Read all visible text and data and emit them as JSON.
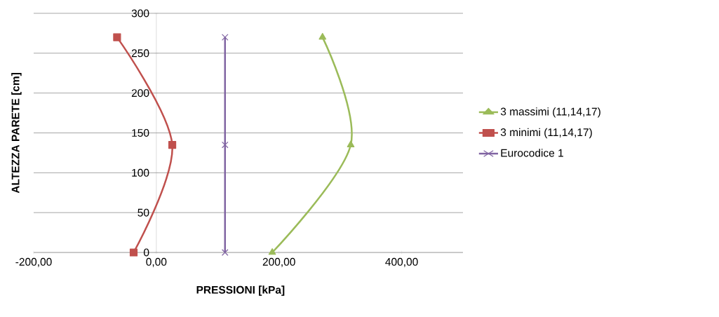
{
  "chart_data": {
    "type": "line",
    "xlabel": "PRESSIONI [kPa]",
    "ylabel": "ALTEZZA PARETE [cm]",
    "xlim": [
      -200,
      500
    ],
    "ylim": [
      0,
      300
    ],
    "xticks": [
      {
        "value": -200,
        "label": "-200,00"
      },
      {
        "value": 0,
        "label": "0,00"
      },
      {
        "value": 200,
        "label": "200,00"
      },
      {
        "value": 400,
        "label": "400,00"
      }
    ],
    "yticks": [
      0,
      50,
      100,
      150,
      200,
      250,
      300
    ],
    "grid": "y",
    "legend": "right",
    "series": [
      {
        "name": "3 massimi (11,14,17)",
        "color": "#9bbb59",
        "marker": "triangle",
        "x": [
          189,
          317,
          271
        ],
        "values": [
          0,
          135,
          270
        ]
      },
      {
        "name": "3 minimi (11,14,17)",
        "color": "#c0504d",
        "marker": "square",
        "x": [
          -37,
          26,
          -64
        ],
        "values": [
          0,
          135,
          270
        ]
      },
      {
        "name": "Eurocodice 1",
        "color": "#8064a2",
        "marker": "cross",
        "x": [
          112,
          112,
          112
        ],
        "values": [
          0,
          135,
          270
        ]
      }
    ]
  }
}
